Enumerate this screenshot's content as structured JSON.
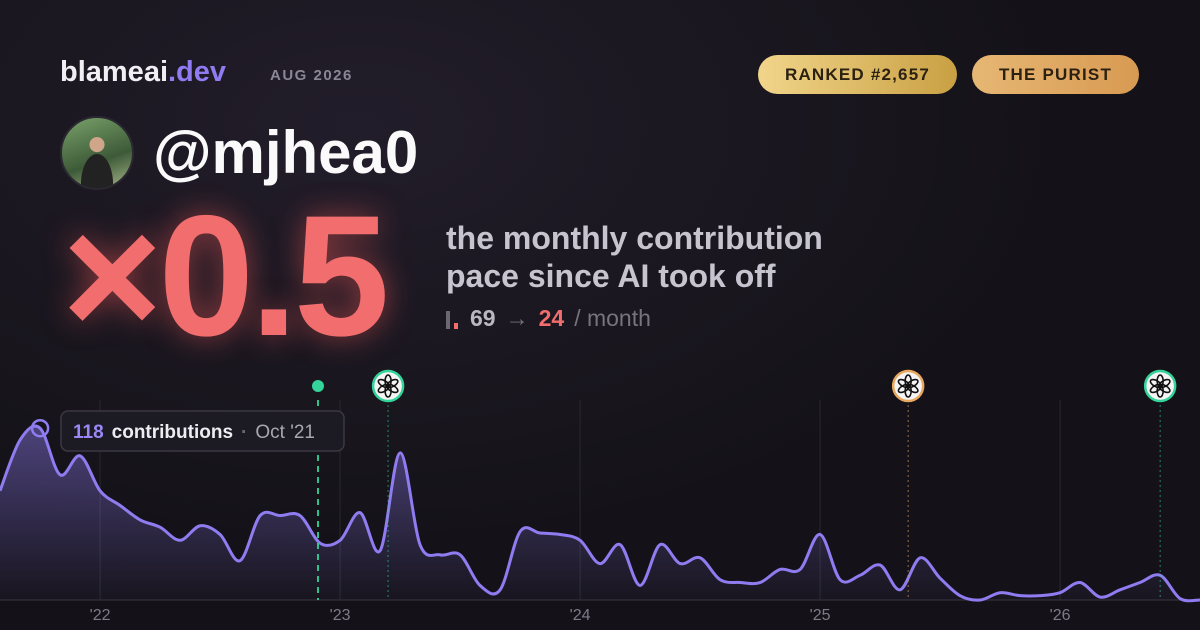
{
  "brand": {
    "name": "blameai",
    "tld": ".dev",
    "date": "AUG 2026"
  },
  "badges": [
    "RANKED #2,657",
    "THE PURIST"
  ],
  "handle": "@mjhea0",
  "multiplier": "×0.5",
  "subtitle": [
    "the monthly contribution",
    "pace since AI took off"
  ],
  "stats": {
    "before": "69",
    "arrow": "→",
    "after": "24",
    "unit": "/ month"
  },
  "chart_data": {
    "type": "line",
    "color": "#8f7cf0",
    "x": [
      2021.583,
      2021.667,
      2021.75,
      2021.833,
      2021.917,
      2022,
      2022.083,
      2022.167,
      2022.25,
      2022.333,
      2022.417,
      2022.5,
      2022.583,
      2022.667,
      2022.75,
      2022.833,
      2022.917,
      2023,
      2023.083,
      2023.167,
      2023.25,
      2023.333,
      2023.417,
      2023.5,
      2023.583,
      2023.667,
      2023.75,
      2023.833,
      2023.917,
      2024,
      2024.083,
      2024.167,
      2024.25,
      2024.333,
      2024.417,
      2024.5,
      2024.583,
      2024.667,
      2024.75,
      2024.833,
      2024.917,
      2025,
      2025.083,
      2025.167,
      2025.25,
      2025.333,
      2025.417,
      2025.5,
      2025.583,
      2025.667,
      2025.75,
      2025.833,
      2025.917,
      2026,
      2026.083,
      2026.167,
      2026.25,
      2026.333,
      2026.417,
      2026.5,
      2026.583
    ],
    "values": [
      75,
      110,
      118,
      86,
      99,
      75,
      65,
      55,
      50,
      41,
      51,
      45,
      27,
      58,
      58,
      58,
      39,
      41,
      60,
      34,
      101,
      38,
      31,
      31,
      10,
      7,
      47,
      46,
      45,
      41,
      25,
      38,
      10,
      38,
      25,
      29,
      14,
      12,
      12,
      21,
      21,
      45,
      14,
      17,
      24,
      7,
      29,
      15,
      3,
      0,
      5,
      3,
      3,
      5,
      12,
      2,
      7,
      12,
      17,
      1,
      0
    ],
    "xlim": [
      2021.583,
      2026.583
    ],
    "ylim": [
      0,
      125
    ],
    "xticks": [
      {
        "value": 2022,
        "label": "'22"
      },
      {
        "value": 2023,
        "label": "'23"
      },
      {
        "value": 2024,
        "label": "'24"
      },
      {
        "value": 2025,
        "label": "'25"
      },
      {
        "value": 2026,
        "label": "'26"
      }
    ],
    "grid": true,
    "events": [
      {
        "x": 2022.908,
        "color": "#34d399"
      },
      {
        "x": 2023.2,
        "color": "#34d399"
      },
      {
        "x": 2025.367,
        "color": "#e8a860"
      },
      {
        "x": 2026.417,
        "color": "#34d399"
      }
    ],
    "tooltip": {
      "index": 2,
      "unit": "contributions",
      "date": "Oct '21"
    }
  }
}
